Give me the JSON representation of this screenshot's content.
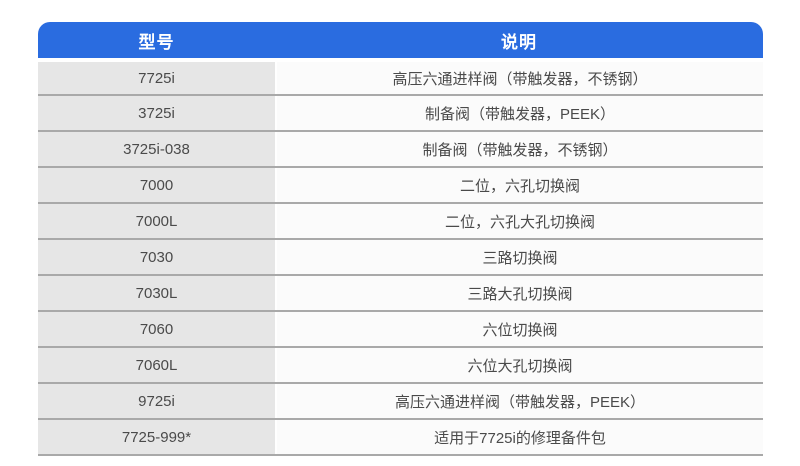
{
  "colors": {
    "header_bg": "#2a6ce0",
    "header_text": "#ffffff",
    "model_cell_bg": "#e6e6e6",
    "desc_cell_bg": "#fbfbfb",
    "separator": "#a9a9a9",
    "body_text": "#4a4a4a"
  },
  "table": {
    "columns": [
      {
        "key": "model",
        "label": "型号"
      },
      {
        "key": "desc",
        "label": "说明"
      }
    ],
    "rows": [
      {
        "model": "7725i",
        "desc": "高压六通进样阀（带触发器，不锈钢）"
      },
      {
        "model": "3725i",
        "desc": "制备阀（带触发器，PEEK）"
      },
      {
        "model": "3725i-038",
        "desc": "制备阀（带触发器，不锈钢）"
      },
      {
        "model": "7000",
        "desc": "二位，六孔切换阀"
      },
      {
        "model": "7000L",
        "desc": "二位，六孔大孔切换阀"
      },
      {
        "model": "7030",
        "desc": "三路切换阀"
      },
      {
        "model": "7030L",
        "desc": "三路大孔切换阀"
      },
      {
        "model": "7060",
        "desc": "六位切换阀"
      },
      {
        "model": "7060L",
        "desc": "六位大孔切换阀"
      },
      {
        "model": "9725i",
        "desc": "高压六通进样阀（带触发器，PEEK）"
      },
      {
        "model": "7725-999*",
        "desc": "适用于7725i的修理备件包"
      }
    ]
  }
}
